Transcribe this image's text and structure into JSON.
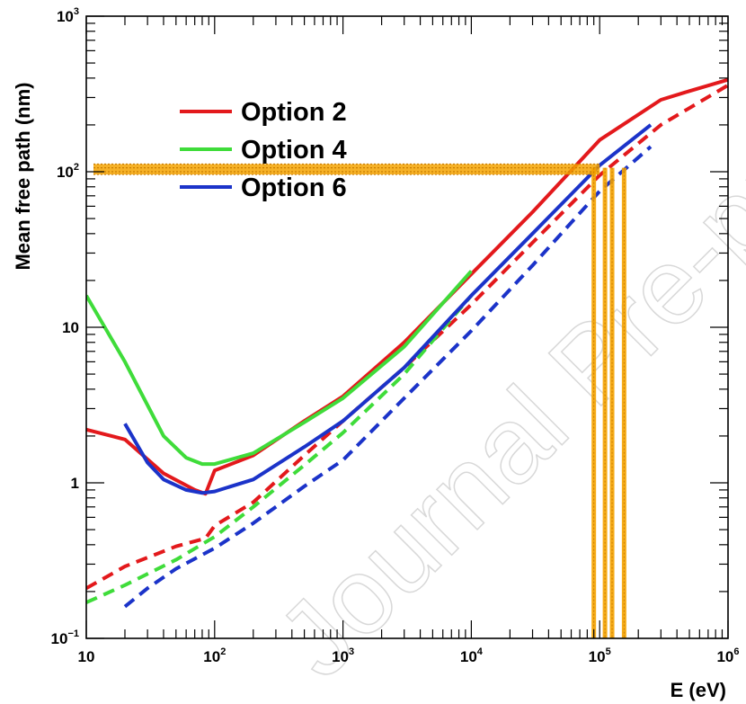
{
  "chart_data": {
    "type": "line",
    "xlabel": "E (eV)",
    "ylabel": "Mean free path (nm)",
    "x_scale": "log",
    "y_scale": "log",
    "xlim": [
      10,
      1000000
    ],
    "ylim": [
      0.1,
      1000
    ],
    "x_ticks": [
      {
        "value": 10,
        "base": "10",
        "exp": ""
      },
      {
        "value": 100,
        "base": "10",
        "exp": "2"
      },
      {
        "value": 1000,
        "base": "10",
        "exp": "3"
      },
      {
        "value": 10000,
        "base": "10",
        "exp": "4"
      },
      {
        "value": 100000,
        "base": "10",
        "exp": "5"
      },
      {
        "value": 1000000,
        "base": "10",
        "exp": "6"
      }
    ],
    "y_ticks": [
      {
        "value": 0.1,
        "base": "10",
        "exp": "−1"
      },
      {
        "value": 1,
        "base": "1",
        "exp": ""
      },
      {
        "value": 10,
        "base": "10",
        "exp": ""
      },
      {
        "value": 100,
        "base": "10",
        "exp": "2"
      },
      {
        "value": 1000,
        "base": "10",
        "exp": "3"
      }
    ],
    "grid": false,
    "legend_position": "top-left",
    "legend": [
      {
        "label": "Option 2",
        "color": "#e3191c"
      },
      {
        "label": "Option 4",
        "color": "#3fdc3a"
      },
      {
        "label": "Option 6",
        "color": "#1b33c9"
      }
    ],
    "series": [
      {
        "name": "Option 2",
        "style": "solid",
        "color": "#e3191c",
        "points": [
          [
            10,
            2.2
          ],
          [
            20,
            1.9
          ],
          [
            40,
            1.15
          ],
          [
            70,
            0.9
          ],
          [
            85,
            0.85
          ],
          [
            100,
            1.2
          ],
          [
            200,
            1.5
          ],
          [
            500,
            2.5
          ],
          [
            1000,
            3.6
          ],
          [
            3000,
            8
          ],
          [
            10000,
            22
          ],
          [
            30000,
            55
          ],
          [
            100000,
            160
          ],
          [
            300000,
            290
          ],
          [
            500000,
            330
          ],
          [
            1000000,
            390
          ]
        ]
      },
      {
        "name": "Option 2",
        "style": "dashed",
        "color": "#e3191c",
        "points": [
          [
            10,
            0.21
          ],
          [
            20,
            0.29
          ],
          [
            50,
            0.39
          ],
          [
            85,
            0.44
          ],
          [
            100,
            0.53
          ],
          [
            200,
            0.75
          ],
          [
            500,
            1.5
          ],
          [
            1000,
            2.5
          ],
          [
            3000,
            5.5
          ],
          [
            10000,
            14
          ],
          [
            30000,
            35
          ],
          [
            100000,
            95
          ],
          [
            300000,
            200
          ],
          [
            1000000,
            360
          ]
        ]
      },
      {
        "name": "Option 4",
        "style": "solid",
        "color": "#3fdc3a",
        "points": [
          [
            10,
            16
          ],
          [
            20,
            6
          ],
          [
            40,
            2
          ],
          [
            60,
            1.45
          ],
          [
            80,
            1.32
          ],
          [
            100,
            1.32
          ],
          [
            200,
            1.55
          ],
          [
            500,
            2.45
          ],
          [
            1000,
            3.5
          ],
          [
            3000,
            7.5
          ],
          [
            10000,
            23
          ]
        ]
      },
      {
        "name": "Option 4",
        "style": "dashed",
        "color": "#3fdc3a",
        "points": [
          [
            10,
            0.17
          ],
          [
            20,
            0.22
          ],
          [
            50,
            0.32
          ],
          [
            100,
            0.45
          ],
          [
            200,
            0.7
          ],
          [
            500,
            1.3
          ],
          [
            1000,
            2.1
          ],
          [
            3000,
            5
          ],
          [
            10000,
            16
          ]
        ]
      },
      {
        "name": "Option 6",
        "style": "solid",
        "color": "#1b33c9",
        "points": [
          [
            20,
            2.4
          ],
          [
            30,
            1.35
          ],
          [
            40,
            1.05
          ],
          [
            60,
            0.9
          ],
          [
            80,
            0.86
          ],
          [
            100,
            0.88
          ],
          [
            200,
            1.05
          ],
          [
            500,
            1.7
          ],
          [
            1000,
            2.5
          ],
          [
            3000,
            5.5
          ],
          [
            10000,
            16
          ],
          [
            30000,
            40
          ],
          [
            100000,
            110
          ],
          [
            250000,
            200
          ]
        ]
      },
      {
        "name": "Option 6",
        "style": "dashed",
        "color": "#1b33c9",
        "points": [
          [
            20,
            0.16
          ],
          [
            30,
            0.21
          ],
          [
            50,
            0.28
          ],
          [
            100,
            0.38
          ],
          [
            200,
            0.55
          ],
          [
            500,
            0.95
          ],
          [
            1000,
            1.4
          ],
          [
            3000,
            3.5
          ],
          [
            10000,
            9.5
          ],
          [
            30000,
            25
          ],
          [
            100000,
            75
          ],
          [
            250000,
            145
          ]
        ]
      }
    ],
    "highlights": [
      {
        "type": "horizontal-band",
        "color": "#f5a300",
        "y_values": [
          96,
          100,
          106,
          112
        ],
        "x_from": 10,
        "x_to": 100000
      },
      {
        "type": "vertical-band",
        "color": "#f5a300",
        "x_values": [
          90000,
          110000,
          125000,
          155000
        ],
        "y_from": 0.1,
        "y_to": 106
      }
    ],
    "watermark": "Journal Pre-proof"
  }
}
